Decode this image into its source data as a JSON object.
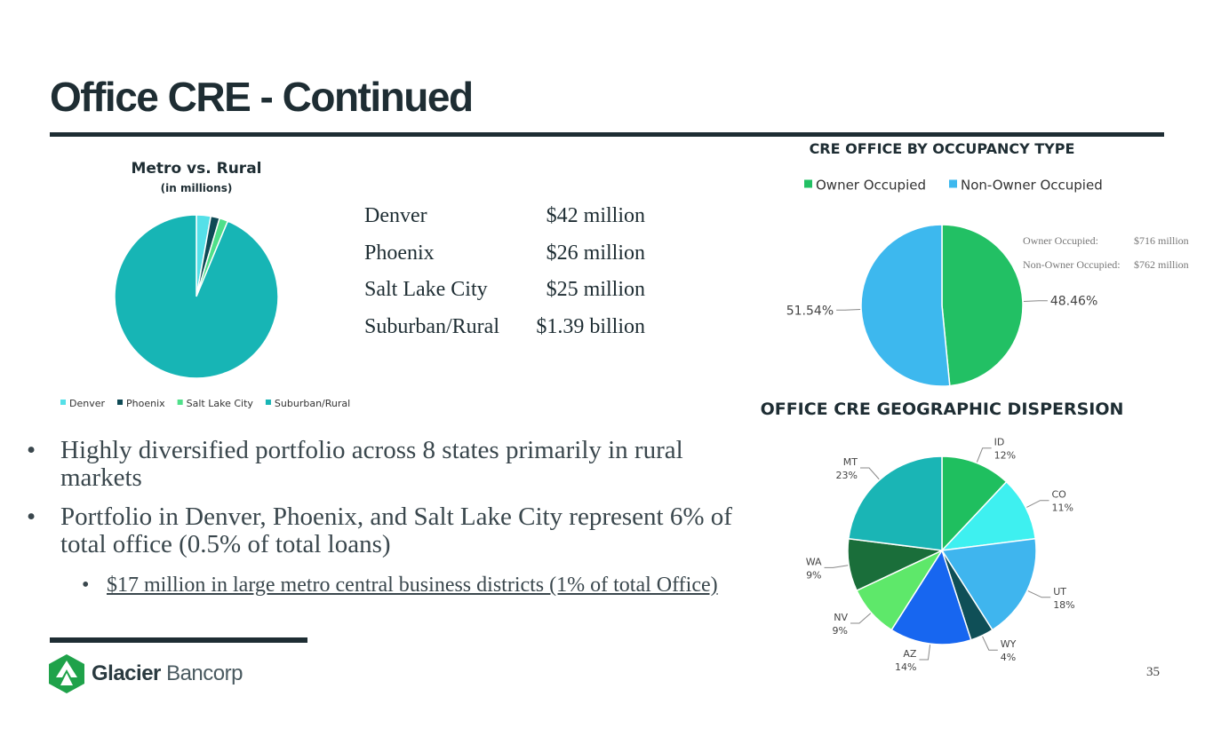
{
  "header": {
    "title": "Office CRE - Continued"
  },
  "metro_table": {
    "rows": [
      [
        "Denver",
        "$42 million"
      ],
      [
        "Phoenix",
        "$26 million"
      ],
      [
        "Salt Lake City",
        "$25 million"
      ],
      [
        "Suburban/Rural",
        "$1.39 billion"
      ]
    ]
  },
  "bullets": [
    "Highly diversified portfolio across 8 states primarily in rural markets",
    "Portfolio in Denver, Phoenix, and Salt Lake City represent 6% of total office (0.5% of total loans)"
  ],
  "sub_bullets": [
    "$17 million in large metro central business districts (1% of total Office)"
  ],
  "footer": {
    "brand_bold": "Glacier",
    "brand_light": "Bancorp",
    "page": "35"
  },
  "chart_data": [
    {
      "type": "pie",
      "title": "Metro vs. Rural",
      "subtitle": "(in millions)",
      "categories": [
        "Denver",
        "Phoenix",
        "Salt Lake City",
        "Suburban/Rural"
      ],
      "values": [
        42,
        26,
        25,
        1390
      ],
      "colors": [
        "#55e0e8",
        "#0e4a55",
        "#4fe08a",
        "#17b5b5"
      ],
      "legend": "bottom"
    },
    {
      "type": "pie",
      "title": "CRE OFFICE BY OCCUPANCY TYPE",
      "categories": [
        "Owner Occupied",
        "Non-Owner Occupied"
      ],
      "values": [
        48.46,
        51.54
      ],
      "value_labels": [
        "48.46%",
        "51.54%"
      ],
      "colors": [
        "#22c064",
        "#3db8ee"
      ],
      "legend": "top",
      "annotations": [
        {
          "label": "Owner Occupied:",
          "text": "$716 million"
        },
        {
          "label": "Non-Owner Occupied:",
          "text": "$762 million"
        }
      ]
    },
    {
      "type": "pie",
      "title": "OFFICE CRE GEOGRAPHIC DISPERSION",
      "categories": [
        "ID",
        "CO",
        "UT",
        "WY",
        "AZ",
        "NV",
        "WA",
        "MT"
      ],
      "values": [
        12,
        11,
        18,
        4,
        14,
        9,
        9,
        23
      ],
      "value_labels": [
        "12%",
        "11%",
        "18%",
        "4%",
        "14%",
        "9%",
        "9%",
        "23%"
      ],
      "colors": [
        "#1fbf5f",
        "#3ef0f0",
        "#3fb5ee",
        "#0f4f57",
        "#1766f0",
        "#5ee86a",
        "#1a6e3a",
        "#1ab5b5"
      ]
    }
  ]
}
